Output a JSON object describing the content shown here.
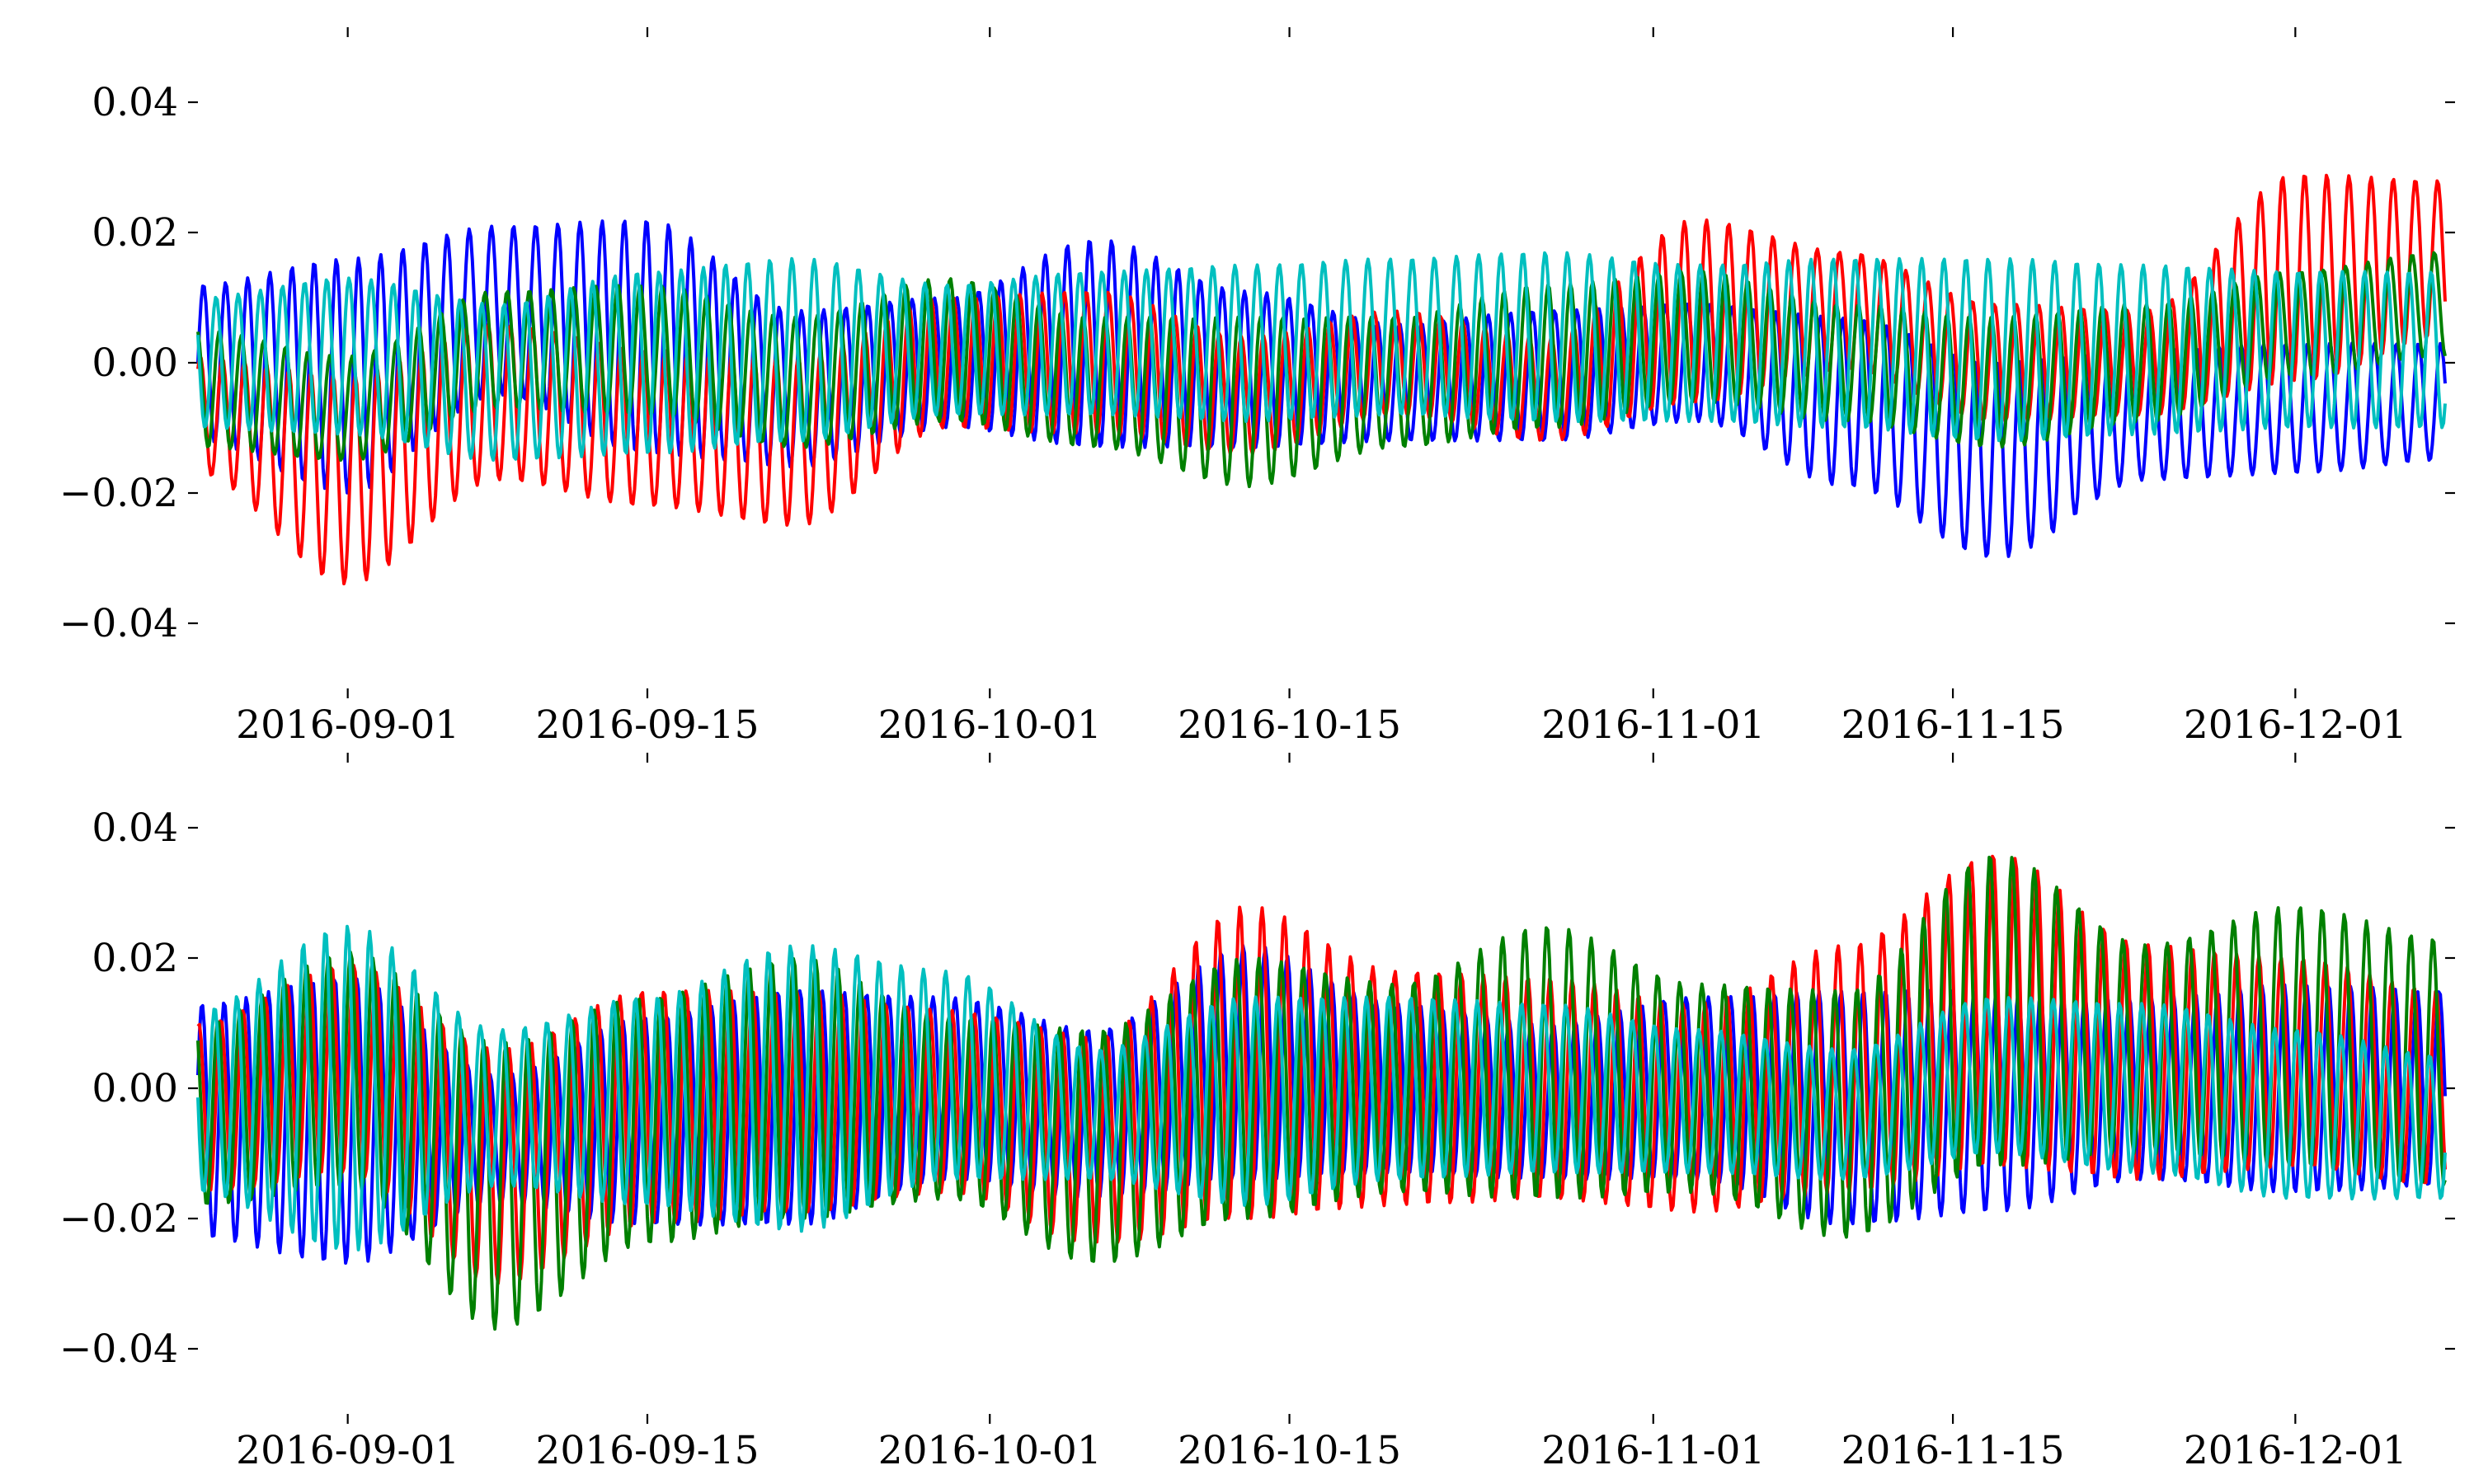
{
  "chart_data": [
    {
      "type": "line",
      "panel": "top",
      "title": "",
      "xlabel": "",
      "ylabel": "",
      "x_range": [
        "2016-08-25",
        "2016-12-08"
      ],
      "xlim": [
        "2016-08-25",
        "2016-12-08"
      ],
      "ylim": [
        -0.05,
        0.05
      ],
      "grid": false,
      "legend": "none",
      "x_ticks": [
        "2016-09-01",
        "2016-09-15",
        "2016-10-01",
        "2016-10-15",
        "2016-11-01",
        "2016-11-15",
        "2016-12-01"
      ],
      "y_ticks": [
        "0.04",
        "0.02",
        "0.00",
        "−0.02",
        "−0.04"
      ],
      "y_tick_values": [
        0.04,
        0.02,
        0.0,
        -0.02,
        -0.04
      ],
      "oscillation_period_days": 1.035,
      "series": [
        {
          "color": "#0000ff",
          "offset_days": [
            0,
            7,
            14,
            21,
            28,
            35,
            42,
            49,
            56,
            63,
            70,
            77,
            84,
            91,
            98,
            105
          ],
          "center": [
            0.0,
            -0.002,
            0.008,
            0.004,
            -0.004,
            0.0,
            0.003,
            -0.001,
            -0.003,
            -0.002,
            0.0,
            -0.006,
            -0.015,
            -0.008,
            -0.007,
            -0.006
          ],
          "amplitude": [
            0.012,
            0.018,
            0.013,
            0.018,
            0.012,
            0.01,
            0.016,
            0.012,
            0.009,
            0.01,
            0.009,
            0.013,
            0.015,
            0.01,
            0.01,
            0.009
          ]
        },
        {
          "color": "#ff0000",
          "offset_days": [
            0,
            7,
            14,
            21,
            28,
            35,
            42,
            49,
            56,
            63,
            70,
            77,
            84,
            91,
            98,
            105
          ],
          "center": [
            -0.008,
            -0.018,
            -0.006,
            -0.01,
            -0.012,
            0.0,
            0.0,
            -0.005,
            0.0,
            -0.004,
            0.008,
            0.008,
            0.0,
            0.0,
            0.013,
            0.016
          ],
          "amplitude": [
            0.009,
            0.016,
            0.012,
            0.012,
            0.013,
            0.01,
            0.011,
            0.009,
            0.008,
            0.008,
            0.014,
            0.009,
            0.009,
            0.008,
            0.016,
            0.012
          ]
        },
        {
          "color": "#008000",
          "offset_days": [
            0,
            7,
            14,
            21,
            28,
            35,
            42,
            49,
            56,
            63,
            70,
            77,
            84,
            91,
            98,
            105
          ],
          "center": [
            -0.004,
            -0.007,
            0.002,
            0.002,
            -0.003,
            0.002,
            -0.003,
            -0.006,
            -0.003,
            0.001,
            0.004,
            0.0,
            -0.003,
            0.0,
            0.006,
            0.009
          ],
          "amplitude": [
            0.009,
            0.008,
            0.009,
            0.01,
            0.01,
            0.011,
            0.01,
            0.013,
            0.01,
            0.011,
            0.01,
            0.009,
            0.01,
            0.009,
            0.008,
            0.008
          ]
        },
        {
          "color": "#00bfbf",
          "offset_days": [
            0,
            7,
            14,
            21,
            28,
            35,
            42,
            49,
            56,
            63,
            70,
            77,
            84,
            91,
            98,
            105
          ],
          "center": [
            0.0,
            0.001,
            -0.003,
            0.0,
            0.002,
            0.002,
            0.003,
            0.003,
            0.004,
            0.004,
            0.003,
            0.003,
            0.002,
            0.002,
            0.002,
            0.002
          ],
          "amplitude": [
            0.01,
            0.012,
            0.012,
            0.014,
            0.014,
            0.01,
            0.011,
            0.012,
            0.012,
            0.013,
            0.012,
            0.013,
            0.014,
            0.013,
            0.012,
            0.012
          ]
        }
      ]
    },
    {
      "type": "line",
      "panel": "bottom",
      "title": "",
      "xlabel": "",
      "ylabel": "",
      "x_range": [
        "2016-08-25",
        "2016-12-08"
      ],
      "xlim": [
        "2016-08-25",
        "2016-12-08"
      ],
      "ylim": [
        -0.05,
        0.05
      ],
      "grid": false,
      "legend": "none",
      "x_ticks": [
        "2016-09-01",
        "2016-09-15",
        "2016-10-01",
        "2016-10-15",
        "2016-11-01",
        "2016-11-15",
        "2016-12-01"
      ],
      "y_ticks": [
        "0.04",
        "0.02",
        "0.00",
        "−0.02",
        "−0.04"
      ],
      "y_tick_values": [
        0.04,
        0.02,
        0.0,
        -0.02,
        -0.04
      ],
      "oscillation_period_days": 1.035,
      "series": [
        {
          "color": "#0000ff",
          "offset_days": [
            0,
            7,
            14,
            21,
            28,
            35,
            42,
            49,
            56,
            63,
            70,
            77,
            84,
            91,
            98,
            105
          ],
          "center": [
            -0.005,
            -0.005,
            -0.008,
            -0.005,
            -0.003,
            0.0,
            -0.004,
            0.004,
            0.0,
            -0.002,
            0.0,
            -0.003,
            -0.002,
            0.0,
            0.0,
            0.0
          ],
          "amplitude": [
            0.018,
            0.022,
            0.01,
            0.016,
            0.018,
            0.014,
            0.013,
            0.018,
            0.013,
            0.012,
            0.014,
            0.018,
            0.017,
            0.014,
            0.016,
            0.015
          ]
        },
        {
          "color": "#ff0000",
          "offset_days": [
            0,
            7,
            14,
            21,
            28,
            35,
            42,
            49,
            56,
            63,
            70,
            77,
            84,
            91,
            98,
            105
          ],
          "center": [
            -0.003,
            0.003,
            -0.012,
            -0.003,
            -0.002,
            -0.002,
            -0.008,
            0.004,
            0.0,
            0.0,
            -0.003,
            0.003,
            0.012,
            0.004,
            0.004,
            0.0
          ],
          "amplitude": [
            0.013,
            0.016,
            0.018,
            0.018,
            0.017,
            0.014,
            0.016,
            0.024,
            0.018,
            0.017,
            0.016,
            0.019,
            0.024,
            0.018,
            0.016,
            0.015
          ]
        },
        {
          "color": "#008000",
          "offset_days": [
            0,
            7,
            14,
            21,
            28,
            35,
            42,
            49,
            56,
            63,
            70,
            77,
            84,
            91,
            98,
            105
          ],
          "center": [
            -0.004,
            0.003,
            -0.015,
            -0.005,
            0.0,
            -0.003,
            -0.009,
            0.0,
            0.0,
            0.004,
            0.0,
            -0.004,
            0.012,
            0.006,
            0.008,
            0.004
          ],
          "amplitude": [
            0.014,
            0.018,
            0.022,
            0.019,
            0.02,
            0.014,
            0.018,
            0.02,
            0.016,
            0.021,
            0.016,
            0.019,
            0.024,
            0.016,
            0.02,
            0.019
          ]
        },
        {
          "color": "#00bfbf",
          "offset_days": [
            0,
            7,
            14,
            21,
            28,
            35,
            42,
            49,
            56,
            63,
            70,
            77,
            84,
            91,
            98,
            105
          ],
          "center": [
            -0.002,
            0.0,
            -0.003,
            -0.002,
            0.0,
            0.002,
            -0.004,
            -0.002,
            0.0,
            0.0,
            -0.002,
            -0.004,
            0.002,
            0.0,
            -0.004,
            -0.006
          ],
          "amplitude": [
            0.014,
            0.025,
            0.012,
            0.016,
            0.022,
            0.016,
            0.01,
            0.016,
            0.014,
            0.013,
            0.011,
            0.01,
            0.012,
            0.013,
            0.013,
            0.011
          ]
        }
      ]
    }
  ]
}
